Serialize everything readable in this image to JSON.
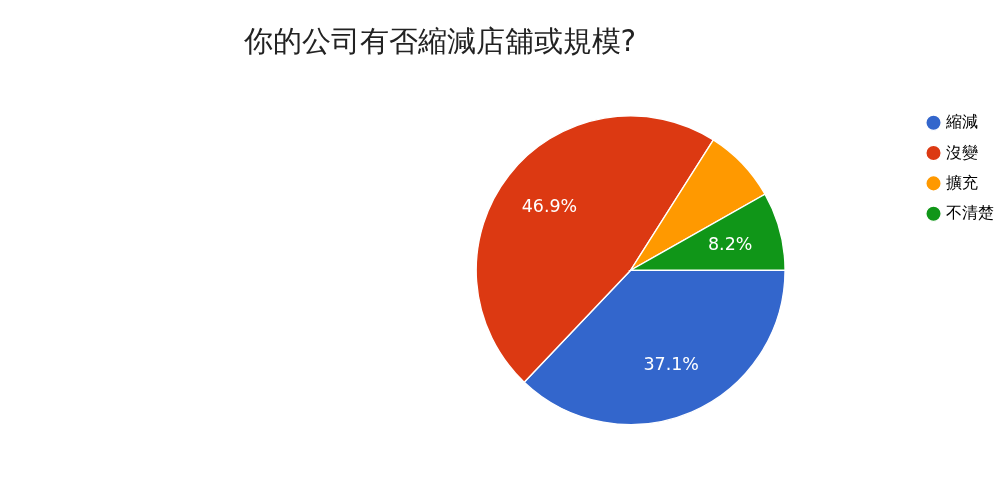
{
  "chart_data": {
    "type": "pie",
    "title": "你的公司有否縮減店舖或規模?",
    "categories": [
      "縮減",
      "沒變",
      "擴充",
      "不清楚"
    ],
    "values": [
      37.1,
      46.9,
      7.8,
      8.2
    ],
    "colors": [
      "#3366cc",
      "#dc3912",
      "#ff9900",
      "#109618"
    ],
    "value_labels": [
      "37.1%",
      "46.9%",
      null,
      "8.2%"
    ],
    "legend": "right"
  }
}
